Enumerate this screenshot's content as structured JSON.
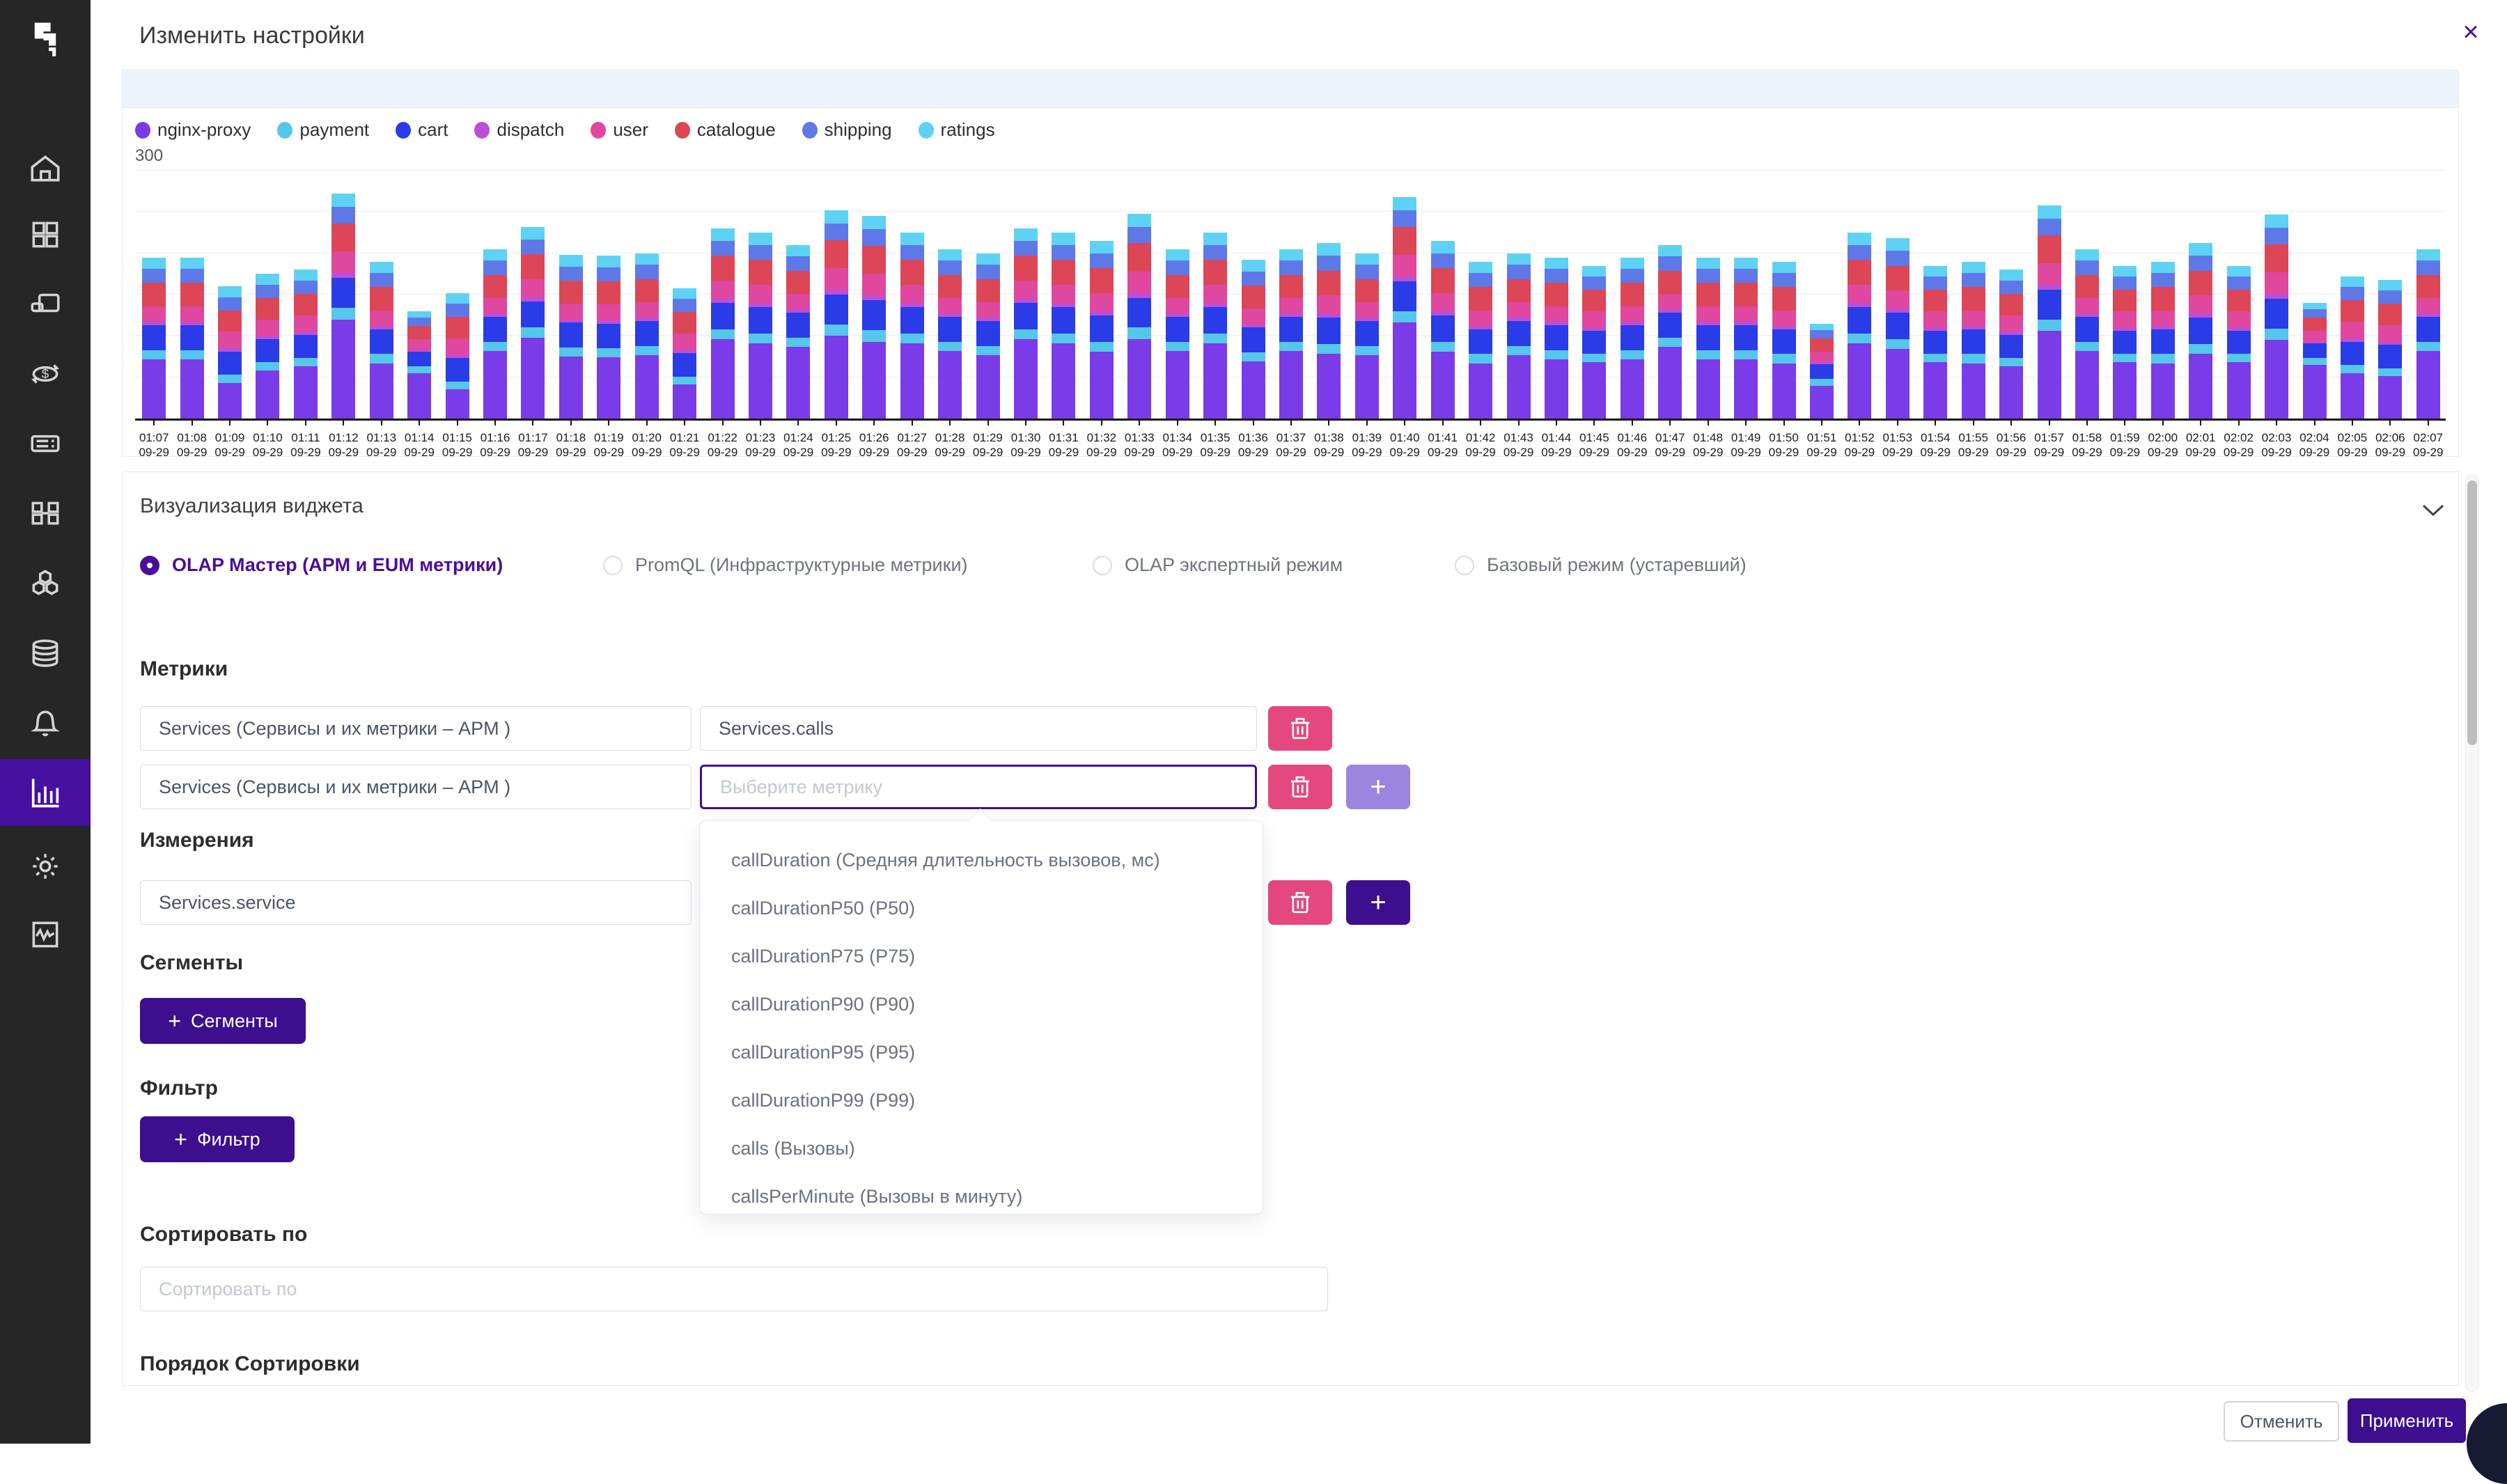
{
  "header": {
    "title": "Изменить настройки",
    "close_label": "×"
  },
  "sidebar": {
    "icons": [
      "logo",
      "home",
      "dashboard",
      "devices",
      "transactions",
      "servers",
      "apps",
      "services-map",
      "database",
      "alerts",
      "charts",
      "settings",
      "monitoring"
    ],
    "active": "charts"
  },
  "chart_data": {
    "type": "stacked_bar",
    "title": "",
    "ymax_label": "300",
    "ylim": [
      0,
      300
    ],
    "grid_step": 50,
    "date_label": "09-29",
    "x": [
      "01:07",
      "01:08",
      "01:09",
      "01:10",
      "01:11",
      "01:12",
      "01:13",
      "01:14",
      "01:15",
      "01:16",
      "01:17",
      "01:18",
      "01:19",
      "01:20",
      "01:21",
      "01:22",
      "01:23",
      "01:24",
      "01:25",
      "01:26",
      "01:27",
      "01:28",
      "01:29",
      "01:30",
      "01:31",
      "01:32",
      "01:33",
      "01:34",
      "01:35",
      "01:36",
      "01:37",
      "01:38",
      "01:39",
      "01:40",
      "01:41",
      "01:42",
      "01:43",
      "01:44",
      "01:45",
      "01:46",
      "01:47",
      "01:48",
      "01:49",
      "01:50",
      "01:51",
      "01:52",
      "01:53",
      "01:54",
      "01:55",
      "01:56",
      "01:57",
      "01:58",
      "01:59",
      "02:00",
      "02:01",
      "02:02",
      "02:03",
      "02:04",
      "02:05",
      "02:06",
      "02:07"
    ],
    "series": [
      {
        "name": "nginx-proxy",
        "color": "#7a3be8",
        "values": [
          72,
          72,
          43,
          58,
          63,
          120,
          67,
          55,
          35,
          82,
          98,
          75,
          74,
          77,
          41,
          96,
          91,
          87,
          100,
          93,
          91,
          82,
          77,
          96,
          91,
          81,
          96,
          82,
          91,
          69,
          82,
          78,
          77,
          116,
          81,
          67,
          77,
          72,
          68,
          72,
          87,
          72,
          72,
          67,
          40,
          91,
          84,
          68,
          67,
          63,
          106,
          82,
          68,
          67,
          78,
          68,
          95,
          65,
          55,
          51,
          82
        ]
      },
      {
        "name": "payment",
        "color": "#56c7ec",
        "values": [
          11,
          11,
          10,
          10,
          10,
          14,
          11,
          8,
          10,
          11,
          12,
          11,
          11,
          11,
          10,
          12,
          12,
          11,
          14,
          14,
          12,
          11,
          11,
          12,
          12,
          12,
          14,
          11,
          12,
          11,
          11,
          12,
          11,
          14,
          12,
          11,
          11,
          11,
          10,
          11,
          11,
          11,
          11,
          11,
          8,
          12,
          12,
          10,
          11,
          10,
          14,
          11,
          10,
          11,
          12,
          10,
          14,
          8,
          10,
          10,
          11
        ]
      },
      {
        "name": "cart",
        "color": "#2a3be8",
        "values": [
          30,
          30,
          28,
          28,
          28,
          36,
          30,
          18,
          28,
          30,
          32,
          30,
          30,
          30,
          28,
          32,
          32,
          30,
          36,
          36,
          32,
          30,
          30,
          32,
          32,
          32,
          36,
          30,
          32,
          30,
          30,
          32,
          30,
          36,
          32,
          30,
          30,
          30,
          28,
          30,
          30,
          30,
          30,
          30,
          18,
          32,
          32,
          28,
          30,
          28,
          36,
          30,
          28,
          30,
          32,
          28,
          36,
          18,
          28,
          28,
          30
        ]
      },
      {
        "name": "dispatch",
        "color": "#bb4fd8",
        "values": [
          4,
          4,
          4,
          4,
          4,
          6,
          4,
          2,
          4,
          4,
          5,
          4,
          4,
          4,
          4,
          5,
          5,
          4,
          6,
          6,
          5,
          4,
          4,
          5,
          5,
          5,
          6,
          4,
          5,
          4,
          4,
          5,
          4,
          6,
          5,
          4,
          4,
          4,
          4,
          4,
          4,
          4,
          4,
          4,
          2,
          5,
          5,
          4,
          4,
          4,
          6,
          4,
          4,
          4,
          5,
          4,
          6,
          2,
          4,
          4,
          4
        ]
      },
      {
        "name": "user",
        "color": "#e0479e",
        "values": [
          19,
          19,
          20,
          20,
          20,
          26,
          19,
          13,
          20,
          19,
          22,
          19,
          19,
          19,
          20,
          22,
          22,
          19,
          26,
          26,
          22,
          19,
          19,
          22,
          22,
          22,
          26,
          19,
          22,
          19,
          19,
          22,
          19,
          26,
          22,
          19,
          19,
          19,
          20,
          19,
          19,
          19,
          19,
          19,
          13,
          22,
          22,
          20,
          19,
          20,
          26,
          19,
          20,
          19,
          22,
          20,
          26,
          13,
          20,
          20,
          19
        ]
      },
      {
        "name": "catalogue",
        "color": "#dc4657",
        "values": [
          28,
          28,
          26,
          26,
          26,
          34,
          28,
          16,
          26,
          28,
          30,
          28,
          28,
          28,
          26,
          30,
          30,
          28,
          34,
          34,
          30,
          28,
          28,
          30,
          30,
          30,
          34,
          28,
          30,
          28,
          28,
          30,
          28,
          34,
          30,
          28,
          28,
          28,
          26,
          28,
          28,
          28,
          28,
          28,
          16,
          30,
          30,
          26,
          28,
          26,
          34,
          28,
          26,
          28,
          30,
          26,
          34,
          16,
          26,
          26,
          28
        ]
      },
      {
        "name": "shipping",
        "color": "#5f78e8",
        "values": [
          17,
          17,
          16,
          16,
          16,
          20,
          17,
          10,
          16,
          17,
          18,
          17,
          17,
          17,
          16,
          18,
          18,
          17,
          20,
          20,
          18,
          17,
          17,
          18,
          18,
          18,
          20,
          17,
          18,
          17,
          17,
          18,
          17,
          20,
          18,
          17,
          17,
          17,
          16,
          17,
          17,
          17,
          17,
          17,
          10,
          18,
          18,
          16,
          17,
          16,
          20,
          17,
          16,
          17,
          18,
          16,
          20,
          10,
          16,
          16,
          17
        ]
      },
      {
        "name": "ratings",
        "color": "#5ed2f4",
        "values": [
          14,
          14,
          13,
          13,
          13,
          16,
          14,
          8,
          13,
          14,
          15,
          14,
          14,
          14,
          13,
          15,
          15,
          14,
          16,
          16,
          15,
          14,
          14,
          15,
          15,
          15,
          16,
          14,
          15,
          14,
          14,
          15,
          14,
          16,
          15,
          14,
          14,
          14,
          13,
          14,
          14,
          14,
          14,
          14,
          8,
          15,
          15,
          13,
          14,
          13,
          16,
          14,
          13,
          14,
          15,
          13,
          16,
          8,
          13,
          13,
          14
        ]
      }
    ],
    "legend_position": "top",
    "grid": true
  },
  "visualization": {
    "title": "Визуализация виджета",
    "options": [
      {
        "label": "OLAP Мастер (APM и EUM метрики)",
        "selected": true,
        "x": 0
      },
      {
        "label": "PromQL (Инфраструктурные метрики)",
        "selected": false,
        "x": 665
      },
      {
        "label": "OLAP экспертный режим",
        "selected": false,
        "x": 1368
      },
      {
        "label": "Базовый режим (устаревший)",
        "selected": false,
        "x": 1888
      }
    ]
  },
  "metrics": {
    "title": "Метрики",
    "rows": [
      {
        "source": "Services (Сервисы и их метрики – APM )",
        "metric_value": "Services.calls",
        "metric_placeholder": ""
      },
      {
        "source": "Services (Сервисы и их метрики – APM )",
        "metric_value": "",
        "metric_placeholder": "Выберите метрику"
      }
    ]
  },
  "metric_dropdown": {
    "items": [
      "callDuration (Средняя длительность вызовов, мс)",
      "callDurationP50 (P50)",
      "callDurationP75 (P75)",
      "callDurationP90 (P90)",
      "callDurationP95 (P95)",
      "callDurationP99 (P99)",
      "calls (Вызовы)",
      "callsPerMinute (Вызовы в минуту)"
    ]
  },
  "dimensions": {
    "title": "Измерения",
    "value": "Services.service"
  },
  "segments": {
    "title": "Сегменты",
    "button_label": "Сегменты",
    "plus": "+"
  },
  "filter": {
    "title": "Фильтр",
    "button_label": "Фильтр",
    "plus": "+"
  },
  "sort": {
    "title": "Сортировать по",
    "placeholder": "Сортировать по"
  },
  "sort_order": {
    "title": "Порядок Сортировки"
  },
  "footer": {
    "cancel": "Отменить",
    "apply": "Применить"
  },
  "colors": {
    "accent": "#3d0e8e",
    "delete": "#e5487e",
    "plus_light": "#9c85de",
    "focus": "#3a0ca3",
    "radio_selected": "#4a0d9b"
  }
}
